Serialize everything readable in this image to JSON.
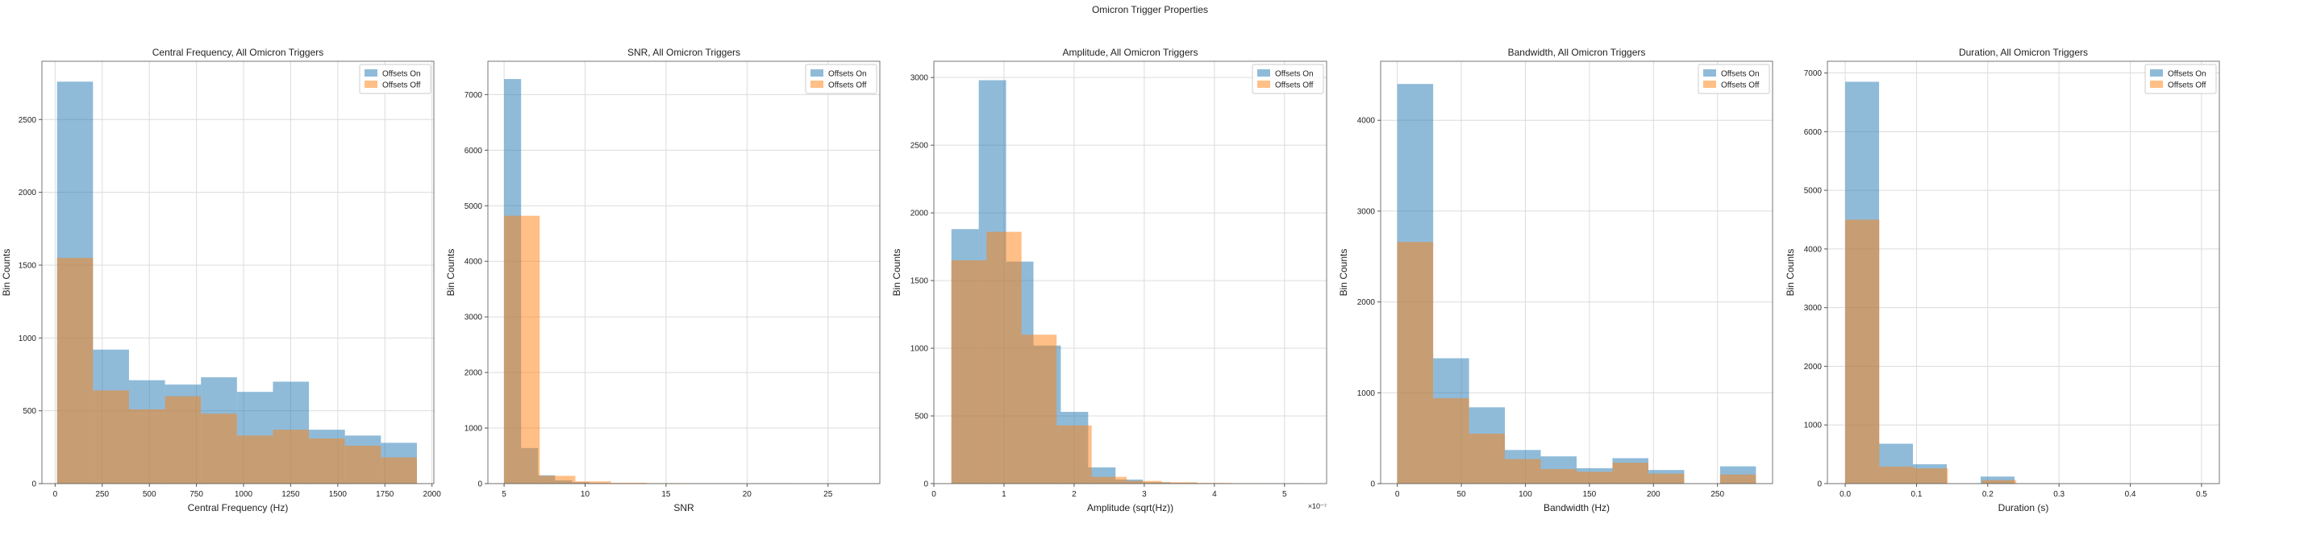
{
  "figure": {
    "title": "Omicron Trigger Properties"
  },
  "colors": {
    "on": "#1f77b4",
    "off": "#ff7f0e"
  },
  "chart_data": [
    {
      "type": "bar",
      "title": "Central Frequency, All Omicron Triggers",
      "xlabel": "Central Frequency (Hz)",
      "ylabel": "Bin Counts",
      "xlim": [
        -70,
        2010
      ],
      "ylim": [
        0,
        2900
      ],
      "xticks": [
        0,
        250,
        500,
        750,
        1000,
        1250,
        1500,
        1750,
        2000
      ],
      "yticks": [
        0,
        500,
        1000,
        1500,
        2000,
        2500
      ],
      "exponent": "",
      "legend": [
        "Offsets On",
        "Offsets Off"
      ],
      "legend_loc": "upper right",
      "grid": true,
      "series": [
        {
          "name": "Offsets On",
          "edges": [
            10,
            201,
            392,
            583,
            774,
            965,
            1156,
            1347,
            1538,
            1729,
            1920
          ],
          "counts": [
            2760,
            920,
            710,
            680,
            730,
            630,
            700,
            370,
            330,
            280
          ]
        },
        {
          "name": "Offsets Off",
          "edges": [
            10,
            201,
            392,
            583,
            774,
            965,
            1156,
            1347,
            1538,
            1729,
            1920
          ],
          "counts": [
            1550,
            640,
            510,
            600,
            480,
            330,
            370,
            310,
            260,
            180
          ]
        }
      ]
    },
    {
      "type": "bar",
      "title": "SNR, All Omicron Triggers",
      "xlabel": "SNR",
      "ylabel": "Bin Counts",
      "xlim": [
        4.0,
        28.2
      ],
      "ylim": [
        0,
        7600
      ],
      "xticks": [
        5,
        10,
        15,
        20,
        25
      ],
      "yticks": [
        0,
        1000,
        2000,
        3000,
        4000,
        5000,
        6000,
        7000
      ],
      "exponent": "",
      "legend": [
        "Offsets On",
        "Offsets Off"
      ],
      "legend_loc": "upper right",
      "grid": true,
      "series": [
        {
          "name": "Offsets On",
          "edges": [
            5.0,
            6.05,
            7.1,
            8.15,
            9.2,
            10.25,
            11.3,
            12.35,
            13.4,
            14.45,
            15.5
          ],
          "counts": [
            7280,
            640,
            150,
            60,
            25,
            10,
            5,
            3,
            2,
            1
          ]
        },
        {
          "name": "Offsets Off",
          "edges": [
            5.0,
            7.2,
            9.4,
            11.6,
            13.8,
            16.0,
            18.2,
            20.4,
            22.6,
            24.8,
            27.0
          ],
          "counts": [
            4820,
            140,
            40,
            15,
            8,
            5,
            3,
            2,
            1,
            1
          ]
        }
      ]
    },
    {
      "type": "bar",
      "title": "Amplitude, All Omicron Triggers",
      "xlabel": "Amplitude (sqrt(Hz))",
      "ylabel": "Bin Counts",
      "xlim": [
        0,
        5.6
      ],
      "ylim": [
        0,
        3120
      ],
      "xticks": [
        0,
        1,
        2,
        3,
        4,
        5
      ],
      "yticks": [
        0,
        500,
        1000,
        1500,
        2000,
        2500,
        3000
      ],
      "exponent": "×10⁻⁷",
      "legend": [
        "Offsets On",
        "Offsets Off"
      ],
      "legend_loc": "upper right",
      "grid": true,
      "series": [
        {
          "name": "Offsets On",
          "edges": [
            0.25,
            0.64,
            1.03,
            1.42,
            1.81,
            2.2,
            2.59,
            2.98,
            3.37,
            3.76,
            4.15
          ],
          "counts": [
            1880,
            2980,
            1640,
            1020,
            530,
            120,
            30,
            10,
            5,
            2
          ]
        },
        {
          "name": "Offsets Off",
          "edges": [
            0.25,
            0.75,
            1.25,
            1.75,
            2.25,
            2.75,
            3.25,
            3.75,
            4.25,
            4.75,
            5.25
          ],
          "counts": [
            1650,
            1860,
            1100,
            430,
            50,
            20,
            10,
            5,
            3,
            2
          ]
        }
      ]
    },
    {
      "type": "bar",
      "title": "Bandwidth, All Omicron Triggers",
      "xlabel": "Bandwidth (Hz)",
      "ylabel": "Bin Counts",
      "xlim": [
        -13,
        293
      ],
      "ylim": [
        0,
        4650
      ],
      "xticks": [
        0,
        50,
        100,
        150,
        200,
        250
      ],
      "yticks": [
        0,
        1000,
        2000,
        3000,
        4000
      ],
      "exponent": "",
      "legend": [
        "Offsets On",
        "Offsets Off"
      ],
      "legend_loc": "upper right",
      "grid": true,
      "series": [
        {
          "name": "Offsets On",
          "edges": [
            0,
            28,
            56,
            84,
            112,
            140,
            168,
            196,
            224,
            252,
            280
          ],
          "counts": [
            4400,
            1380,
            840,
            370,
            300,
            170,
            280,
            150,
            0,
            190
          ]
        },
        {
          "name": "Offsets Off",
          "edges": [
            0,
            28,
            56,
            84,
            112,
            140,
            168,
            196,
            224,
            252,
            280
          ],
          "counts": [
            2660,
            940,
            550,
            270,
            160,
            130,
            230,
            110,
            0,
            100
          ]
        }
      ]
    },
    {
      "type": "bar",
      "title": "Duration, All Omicron Triggers",
      "xlabel": "Duration (s)",
      "ylabel": "Bin Counts",
      "xlim": [
        -0.025,
        0.525
      ],
      "ylim": [
        0,
        7200
      ],
      "xticks": [
        0.0,
        0.1,
        0.2,
        0.3,
        0.4,
        0.5
      ],
      "yticks": [
        0,
        1000,
        2000,
        3000,
        4000,
        5000,
        6000,
        7000
      ],
      "exponent": "",
      "legend": [
        "Offsets On",
        "Offsets Off"
      ],
      "legend_loc": "upper right",
      "grid": true,
      "series": [
        {
          "name": "Offsets On",
          "edges": [
            0.0,
            0.0475,
            0.095,
            0.1425,
            0.19,
            0.2375,
            0.285,
            0.3325,
            0.38,
            0.4275,
            0.475
          ],
          "counts": [
            6850,
            680,
            330,
            0,
            120,
            0,
            0,
            0,
            0,
            0
          ]
        },
        {
          "name": "Offsets Off",
          "edges": [
            0.0,
            0.048,
            0.096,
            0.144,
            0.192,
            0.24,
            0.288,
            0.336,
            0.384,
            0.432,
            0.48
          ],
          "counts": [
            4500,
            290,
            260,
            0,
            60,
            0,
            0,
            0,
            0,
            0
          ]
        }
      ]
    }
  ]
}
